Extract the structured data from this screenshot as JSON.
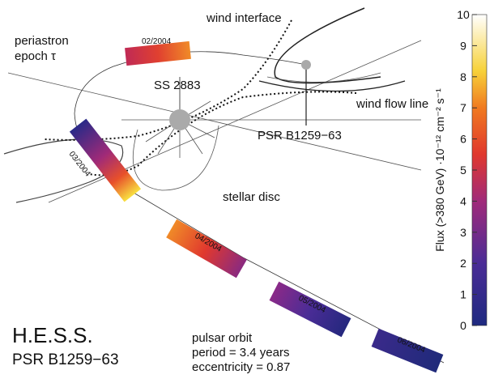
{
  "labels": {
    "wind_interface": "wind interface",
    "periastron": "periastron",
    "epoch": "epoch τ",
    "star": "SS 2883",
    "pulsar": "PSR B1259−63",
    "wind_flow_line": "wind flow line",
    "stellar_disc": "stellar disc"
  },
  "epochs": [
    "02/2004",
    "03/2004",
    "04/2004",
    "05/2004",
    "06/2004"
  ],
  "footer": {
    "title": "H.E.S.S.",
    "subtitle": "PSR B1259−63"
  },
  "orbit_note": [
    "pulsar orbit",
    "period = 3.4 years",
    "eccentricity = 0.87"
  ],
  "colorbar": {
    "label": "Flux (>380 GeV) ·10⁻¹² cm⁻² s⁻¹",
    "range": [
      0,
      10
    ],
    "ticks": [
      0,
      1,
      2,
      3,
      4,
      5,
      6,
      7,
      8,
      9,
      10
    ]
  }
}
